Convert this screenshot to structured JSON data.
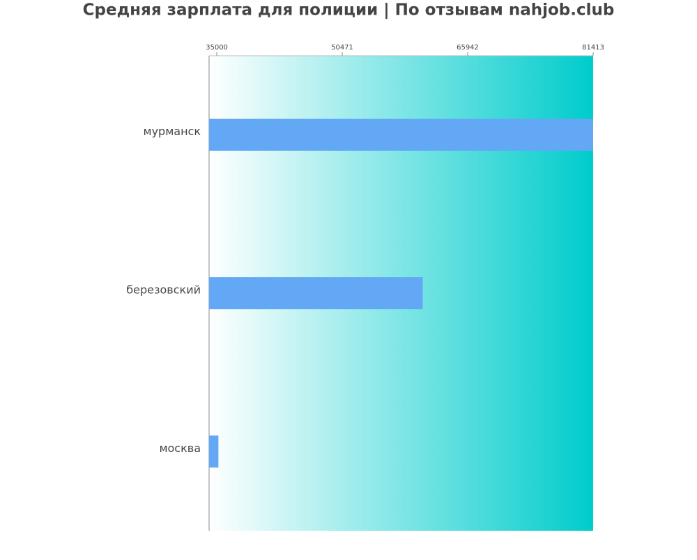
{
  "chart_data": {
    "type": "barh",
    "title": "Средняя зарплата для полиции | По отзывам nahjob.club",
    "categories": [
      "мурманск",
      "березовский",
      "москва"
    ],
    "values": [
      81413,
      60400,
      35200
    ],
    "color": "#63a8f5",
    "xlim": [
      34053,
      81413
    ],
    "xticks": [
      35000,
      50471,
      65942,
      81413
    ]
  }
}
